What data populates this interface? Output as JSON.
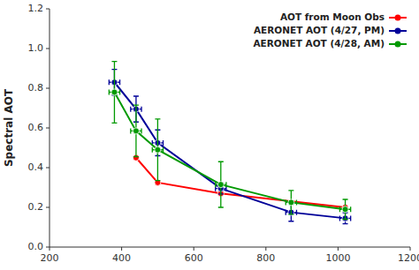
{
  "chart_data": {
    "type": "line",
    "ylabel": "Spectral AOT",
    "xlim": [
      200,
      1200
    ],
    "ylim": [
      0.0,
      1.2
    ],
    "xticks": [
      200,
      400,
      600,
      800,
      1000,
      1200
    ],
    "yticks": [
      {
        "value": 0.0,
        "label": "0.0"
      },
      0.2,
      0.4,
      0.6,
      0.8,
      {
        "value": 1.0,
        "label": "1.0"
      },
      1.2
    ],
    "grid": false,
    "legend": "upper right",
    "marker": "circle",
    "line_style": "solid",
    "series": [
      {
        "name": "AOT from Moon Obs",
        "color": "#ff0000",
        "x": [
          440,
          500,
          675,
          1020
        ],
        "values": [
          0.45,
          0.325,
          0.27,
          0.2
        ]
      },
      {
        "name": "AERONET AOT (4/27, PM)",
        "color": "#000099",
        "x": [
          380,
          440,
          500,
          675,
          870,
          1020
        ],
        "values": [
          0.83,
          0.695,
          0.525,
          0.295,
          0.175,
          0.145
        ],
        "yerr": [
          0.065,
          0.065,
          0.065,
          0.028,
          0.045,
          0.028
        ],
        "xerr": [
          15,
          15,
          15,
          15,
          15,
          15
        ]
      },
      {
        "name": "AERONET AOT (4/28, AM)",
        "color": "#009900",
        "x": [
          380,
          440,
          500,
          675,
          870,
          1020
        ],
        "values": [
          0.78,
          0.585,
          0.49,
          0.315,
          0.225,
          0.19
        ],
        "yerr": [
          0.155,
          0.13,
          0.155,
          0.115,
          0.06,
          0.05
        ],
        "xerr": [
          15,
          15,
          15,
          15,
          15,
          15
        ]
      }
    ]
  }
}
